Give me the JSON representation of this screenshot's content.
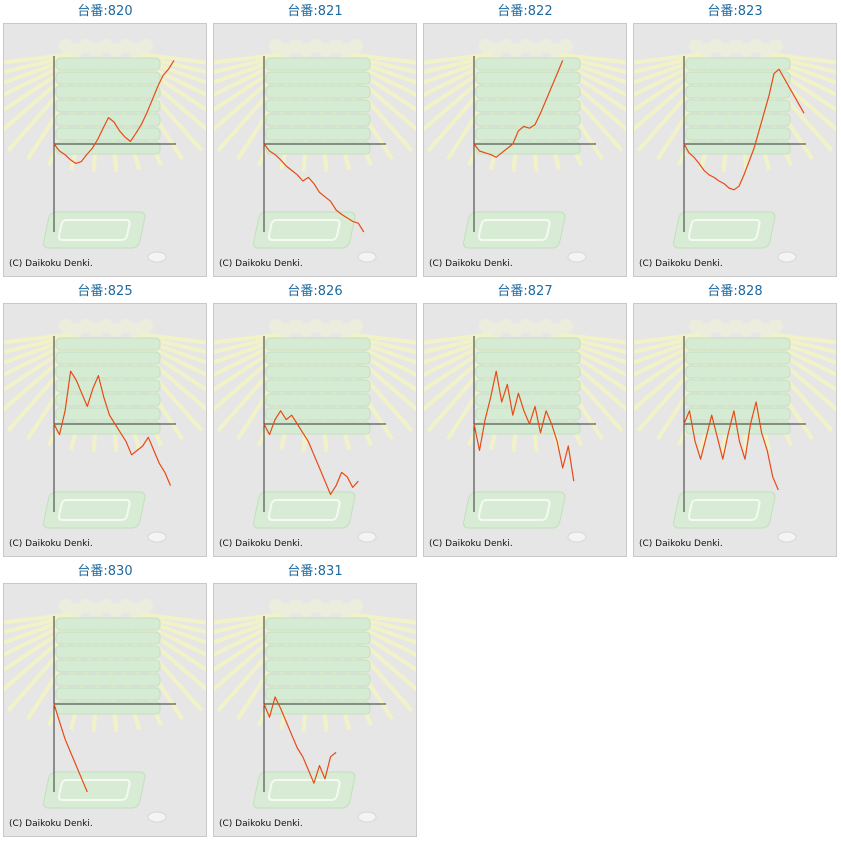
{
  "title_prefix": "台番:",
  "credit": "(C) Daikoku Denki.",
  "colors": {
    "line": "#e84a14",
    "axis": "#333333",
    "title": "#1e6aa0",
    "background": "#e6e6e6"
  },
  "chart_data": [
    {
      "type": "line",
      "title": "台番:820",
      "xlim": [
        0,
        100
      ],
      "ylim": [
        -100,
        100
      ],
      "y": [
        0,
        -8,
        -12,
        -18,
        -22,
        -20,
        -12,
        -5,
        5,
        18,
        30,
        25,
        15,
        8,
        3,
        12,
        22,
        35,
        50,
        65,
        78,
        85,
        95
      ]
    },
    {
      "type": "line",
      "title": "台番:821",
      "xlim": [
        0,
        100
      ],
      "ylim": [
        -100,
        100
      ],
      "y": [
        0,
        -8,
        -12,
        -18,
        -25,
        -30,
        -35,
        -42,
        -38,
        -45,
        -55,
        -60,
        -65,
        -75,
        -80,
        -84,
        -88,
        -90,
        -100
      ]
    },
    {
      "type": "line",
      "title": "台番:822",
      "xlim": [
        0,
        100
      ],
      "ylim": [
        -100,
        100
      ],
      "y": [
        0,
        -8,
        -10,
        -12,
        -15,
        -10,
        -5,
        0,
        15,
        20,
        18,
        22,
        35,
        50,
        65,
        80,
        95
      ]
    },
    {
      "type": "line",
      "title": "台番:823",
      "xlim": [
        0,
        100
      ],
      "ylim": [
        -100,
        100
      ],
      "y": [
        0,
        -10,
        -15,
        -22,
        -30,
        -35,
        -38,
        -42,
        -45,
        -50,
        -52,
        -48,
        -35,
        -20,
        -5,
        15,
        35,
        55,
        80,
        85,
        75,
        65,
        55,
        45,
        35
      ]
    },
    {
      "type": "line",
      "title": "台番:825",
      "xlim": [
        0,
        100
      ],
      "ylim": [
        -100,
        100
      ],
      "y": [
        0,
        -12,
        15,
        60,
        50,
        35,
        20,
        40,
        55,
        30,
        10,
        0,
        -10,
        -20,
        -35,
        -30,
        -25,
        -15,
        -30,
        -45,
        -55,
        -70
      ]
    },
    {
      "type": "line",
      "title": "台番:826",
      "xlim": [
        0,
        100
      ],
      "ylim": [
        -100,
        100
      ],
      "y": [
        0,
        -12,
        5,
        15,
        5,
        10,
        0,
        -10,
        -20,
        -35,
        -50,
        -65,
        -80,
        -70,
        -55,
        -60,
        -72,
        -65
      ]
    },
    {
      "type": "line",
      "title": "台番:827",
      "xlim": [
        0,
        100
      ],
      "ylim": [
        -100,
        100
      ],
      "y": [
        0,
        -30,
        5,
        30,
        60,
        25,
        45,
        10,
        35,
        15,
        0,
        20,
        -10,
        15,
        0,
        -20,
        -50,
        -25,
        -65
      ]
    },
    {
      "type": "line",
      "title": "台番:828",
      "xlim": [
        0,
        100
      ],
      "ylim": [
        -100,
        100
      ],
      "y": [
        0,
        15,
        -20,
        -40,
        -15,
        10,
        -15,
        -40,
        -10,
        15,
        -20,
        -40,
        0,
        25,
        -10,
        -30,
        -60,
        -75
      ]
    },
    {
      "type": "line",
      "title": "台番:830",
      "xlim": [
        0,
        100
      ],
      "ylim": [
        -100,
        100
      ],
      "y": [
        0,
        -20,
        -40,
        -55,
        -70,
        -85,
        -100
      ]
    },
    {
      "type": "line",
      "title": "台番:831",
      "xlim": [
        0,
        100
      ],
      "ylim": [
        -100,
        100
      ],
      "y": [
        0,
        -15,
        8,
        -5,
        -20,
        -35,
        -50,
        -60,
        -75,
        -90,
        -70,
        -85,
        -60,
        -55
      ]
    }
  ]
}
